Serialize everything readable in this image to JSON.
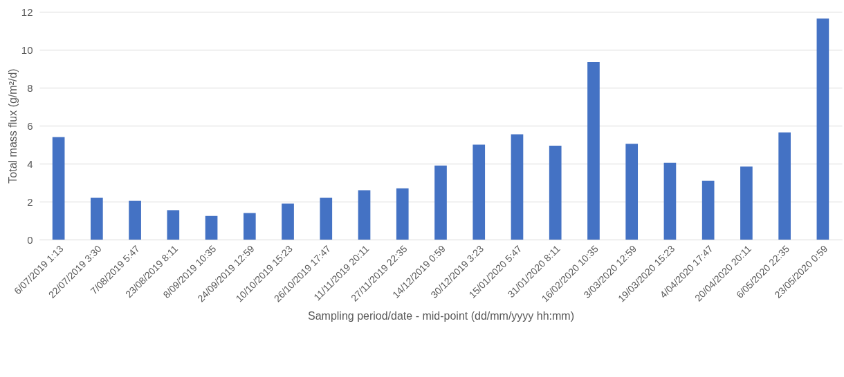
{
  "chart_data": {
    "type": "bar",
    "xlabel": "Sampling period/date - mid-point (dd/mm/yyyy hh:mm)",
    "ylabel": "Total mass flux (g/m²/d)",
    "categories": [
      "6/07/2019 1:13",
      "22/07/2019 3:30",
      "7/08/2019 5:47",
      "23/08/2019 8:11",
      "8/09/2019 10:35",
      "24/09/2019 12:59",
      "10/10/2019 15:23",
      "26/10/2019 17:47",
      "11/11/2019 20:11",
      "27/11/2019 22:35",
      "14/12/2019 0:59",
      "30/12/2019 3:23",
      "15/01/2020 5:47",
      "31/01/2020 8:11",
      "16/02/2020 10:35",
      "3/03/2020 12:59",
      "19/03/2020 15:23",
      "4/04/2020 17:47",
      "20/04/2020 20:11",
      "6/05/2020 22:35",
      "23/05/2020 0:59"
    ],
    "values": [
      5.4,
      2.2,
      2.05,
      1.55,
      1.25,
      1.4,
      1.9,
      2.2,
      2.6,
      2.7,
      3.9,
      5.0,
      5.55,
      4.95,
      9.35,
      5.05,
      4.05,
      3.1,
      3.85,
      5.65,
      11.65
    ],
    "color": "#4472c4",
    "ylim": [
      0,
      12
    ],
    "yticks": [
      0,
      2,
      4,
      6,
      8,
      10,
      12
    ],
    "grid": "y"
  }
}
